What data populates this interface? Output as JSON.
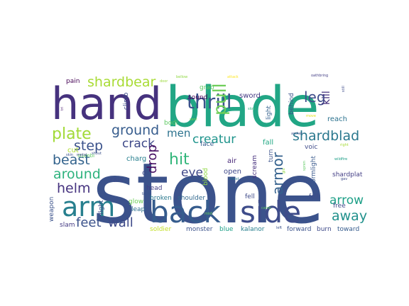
{
  "words": [
    {
      "text": "stone",
      "color": "#3b528b"
    },
    {
      "text": "blade",
      "color": "#21a685"
    },
    {
      "text": "hand",
      "color": "#46327e"
    },
    {
      "text": "back",
      "color": "#365c8d"
    },
    {
      "text": "side",
      "color": "#3e4c8a"
    },
    {
      "text": "arm",
      "color": "#277f8e"
    },
    {
      "text": "thrill",
      "color": "#3b528b"
    },
    {
      "text": "plate",
      "color": "#a2da37"
    },
    {
      "text": "ground",
      "color": "#365c8d"
    },
    {
      "text": "shardbear",
      "color": "#a8db34"
    },
    {
      "text": "around",
      "color": "#2db27d"
    },
    {
      "text": "beast",
      "color": "#33638d"
    },
    {
      "text": "step",
      "color": "#3b528b"
    },
    {
      "text": "helm",
      "color": "#46337f"
    },
    {
      "text": "pull",
      "color": "#6ece58"
    },
    {
      "text": "leg",
      "color": "#3e4c8a"
    },
    {
      "text": "crack",
      "color": "#3e4989"
    },
    {
      "text": "creatur",
      "color": "#1f948c"
    },
    {
      "text": "shardblad",
      "color": "#2a788e"
    },
    {
      "text": "armor",
      "color": "#34618d"
    },
    {
      "text": "arrow",
      "color": "#1fa088"
    },
    {
      "text": "away",
      "color": "#21918c"
    },
    {
      "text": "feet",
      "color": "#3b528b"
    },
    {
      "text": "wall",
      "color": "#3e4a89"
    },
    {
      "text": "hit",
      "color": "#32b67a"
    },
    {
      "text": "eye",
      "color": "#3f4788"
    },
    {
      "text": "men",
      "color": "#2c728e"
    },
    {
      "text": "drop",
      "color": "#471063"
    },
    {
      "text": "pain",
      "color": "#440154"
    },
    {
      "text": "grab",
      "color": "#5ec962"
    },
    {
      "text": "sound",
      "color": "#440154"
    },
    {
      "text": "sword",
      "color": "#443983"
    },
    {
      "text": "light",
      "color": "#34618d"
    },
    {
      "text": "kill",
      "color": "#46327e"
    },
    {
      "text": "reach",
      "color": "#2c728e"
    },
    {
      "text": "behind",
      "color": "#3b528b"
    },
    {
      "text": "bodi",
      "color": "#5ec962"
    },
    {
      "text": "climb",
      "color": "#3e4c8a"
    },
    {
      "text": "charg",
      "color": "#277f8e"
    },
    {
      "text": "air",
      "color": "#482878"
    },
    {
      "text": "fell",
      "color": "#3e4a89"
    },
    {
      "text": "fall",
      "color": "#22a884"
    },
    {
      "text": "face",
      "color": "#365c8d"
    },
    {
      "text": "voic",
      "color": "#3e4a89"
    },
    {
      "text": "cut",
      "color": "#addc30"
    },
    {
      "text": "stumbl",
      "color": "#5ec962"
    },
    {
      "text": "open",
      "color": "#3f4889"
    },
    {
      "text": "scream",
      "color": "#46307e"
    },
    {
      "text": "turn",
      "color": "#3b528b"
    },
    {
      "text": "rais",
      "color": "#3e4a89"
    },
    {
      "text": "head",
      "color": "#433e85"
    },
    {
      "text": "rift",
      "color": "#38588c"
    },
    {
      "text": "glow",
      "color": "#6ece58"
    },
    {
      "text": "broken",
      "color": "#2a788e"
    },
    {
      "text": "shoulder",
      "color": "#31688e"
    },
    {
      "text": "blood",
      "color": "#90d743"
    },
    {
      "text": "leap",
      "color": "#2d708e"
    },
    {
      "text": "felt",
      "color": "#3e4c8a"
    },
    {
      "text": "free",
      "color": "#3e4989"
    },
    {
      "text": "shardplat",
      "color": "#433e85"
    },
    {
      "text": "stormlight",
      "color": "#38588c"
    },
    {
      "text": "weapon",
      "color": "#3b528b"
    },
    {
      "text": "fight",
      "color": "#3e4c8a"
    },
    {
      "text": "slam",
      "color": "#443983"
    },
    {
      "text": "soldier",
      "color": "#c2df23"
    },
    {
      "text": "monster",
      "color": "#3b528b"
    },
    {
      "text": "blue",
      "color": "#1fa088"
    },
    {
      "text": "kalanor",
      "color": "#277f8e"
    },
    {
      "text": "forward",
      "color": "#3b528b"
    },
    {
      "text": "burn",
      "color": "#3e4a89"
    },
    {
      "text": "toward",
      "color": "#365c8d"
    },
    {
      "text": "o",
      "color": "#3e4c8a"
    },
    {
      "text": "bellow",
      "color": "#8fd744"
    },
    {
      "text": "attack",
      "color": "#fde725"
    },
    {
      "text": "oathbring",
      "color": "#433e85"
    },
    {
      "text": "door",
      "color": "#9bd93c"
    },
    {
      "text": "tri",
      "color": "#481b6d"
    },
    {
      "text": "sent",
      "color": "#7ad151"
    },
    {
      "text": "slow",
      "color": "#2db27d"
    },
    {
      "text": "move",
      "color": "#e2e418"
    },
    {
      "text": "archer",
      "color": "#3b528b"
    },
    {
      "text": "skin",
      "color": "#3b528b"
    },
    {
      "text": "metal",
      "color": "#3e4989"
    },
    {
      "text": "shout",
      "color": "#3b528b"
    },
    {
      "text": "chest",
      "color": "#2a788e"
    },
    {
      "text": "mist",
      "color": "#6ece58"
    },
    {
      "text": "left",
      "color": "#3b528b"
    },
    {
      "text": "came",
      "color": "#5ec962"
    },
    {
      "text": "blow",
      "color": "#3b528b"
    },
    {
      "text": "still",
      "color": "#3e4c8a"
    },
    {
      "text": "right",
      "color": "#a5db36"
    },
    {
      "text": "wildfire",
      "color": "#1fa088"
    },
    {
      "text": "gav",
      "color": "#3e4a89"
    },
    {
      "text": "glo",
      "color": "#90d743"
    },
    {
      "text": "spren",
      "color": "#5ec962"
    }
  ]
}
